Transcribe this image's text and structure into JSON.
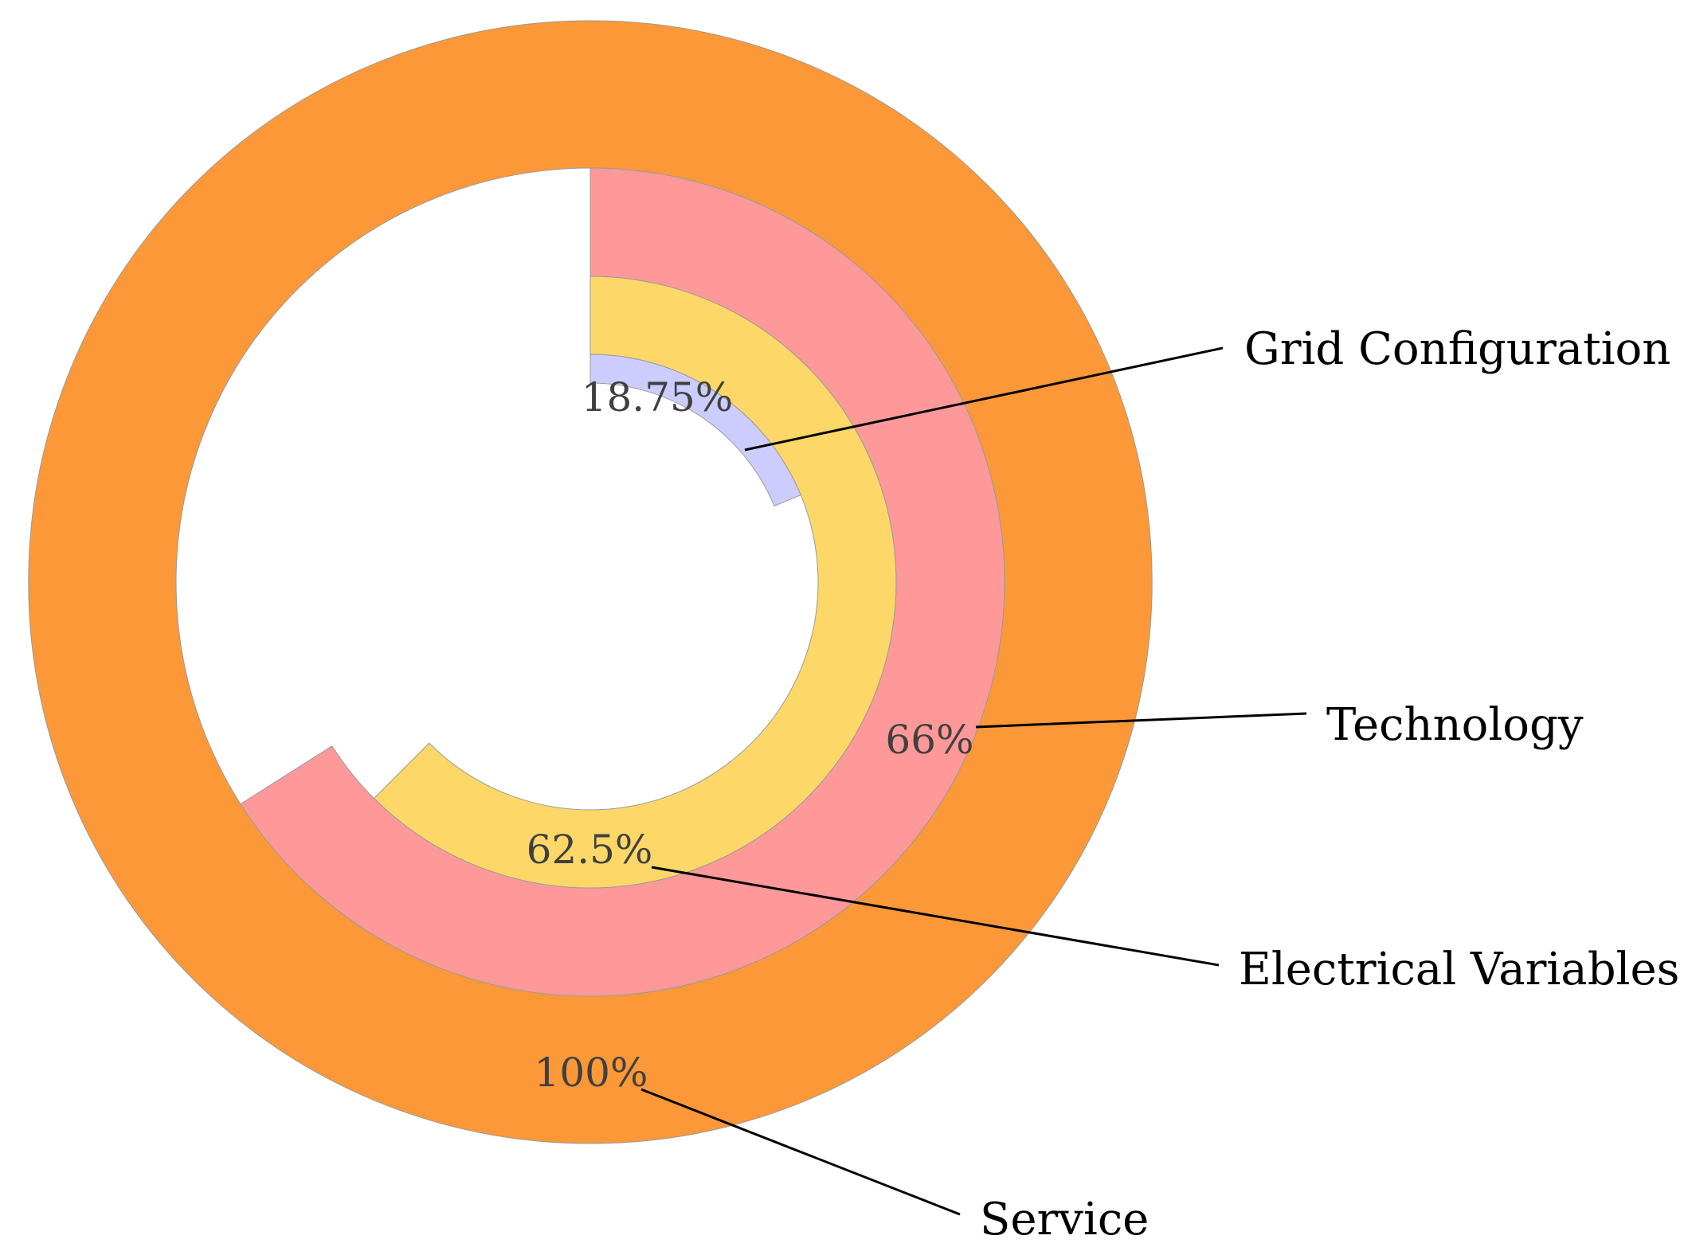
{
  "chart_data": {
    "type": "radial-bar",
    "title": "",
    "max_value": 100,
    "series": [
      {
        "name": "Service",
        "value": 100,
        "label": "100%",
        "color": "#fd9838"
      },
      {
        "name": "Technology",
        "value": 66,
        "label": "66%",
        "color": "#ff9999"
      },
      {
        "name": "Electrical Variables",
        "value": 62.5,
        "label": "62.5%",
        "color": "#fdd767"
      },
      {
        "name": "Grid Configuration",
        "value": 18.75,
        "label": "18.75%",
        "color": "#cccdfe"
      }
    ]
  }
}
